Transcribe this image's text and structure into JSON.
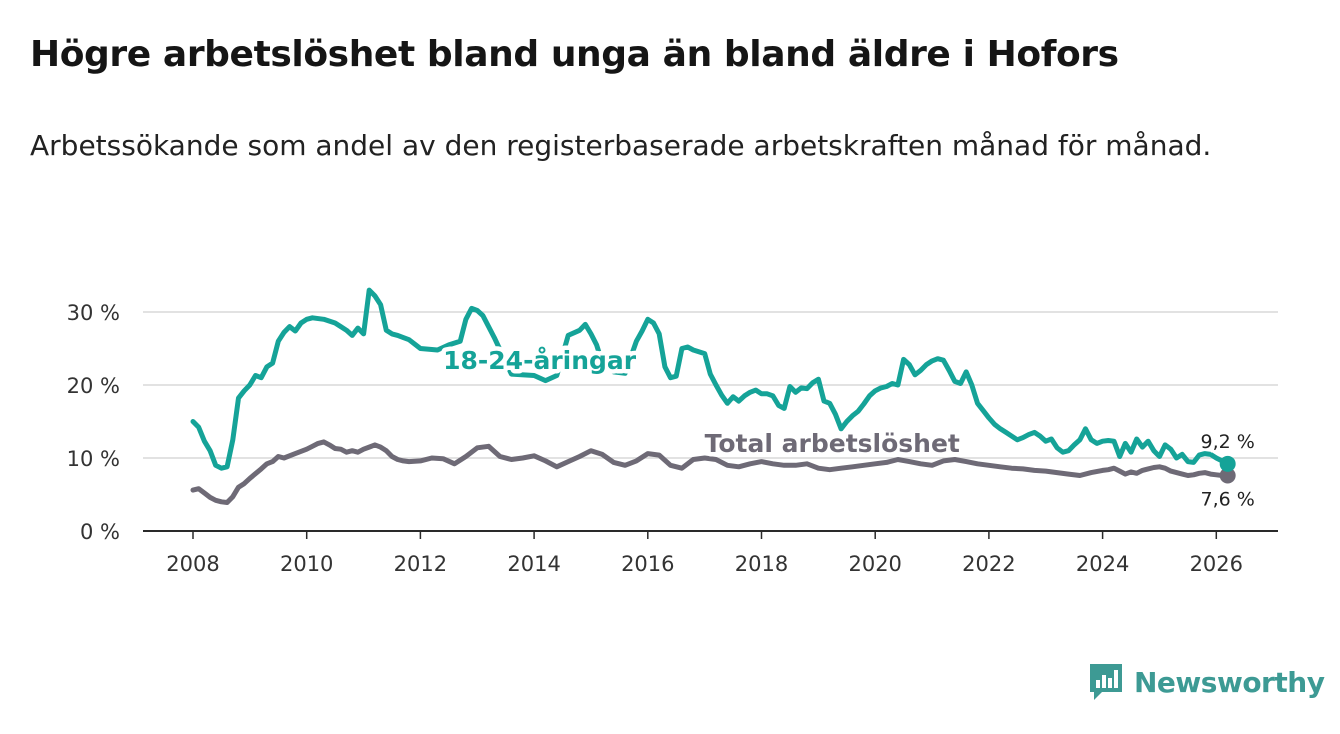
{
  "title": "Högre arbetslöshet bland unga än bland äldre i Hofors",
  "subtitle": "Arbetssökande som andel av den registerbaserade arbetskraften månad för månad.",
  "brand": {
    "name": "Newsworthy",
    "color": "#3d9a94"
  },
  "chart_data": {
    "type": "line",
    "title": "Högre arbetslöshet bland unga än bland äldre i Hofors",
    "xlabel": "",
    "ylabel": "",
    "xlim": [
      2007.5,
      2027.0
    ],
    "ylim": [
      0,
      30
    ],
    "grid": true,
    "x_ticks": [
      {
        "value": 2008,
        "label": "2008"
      },
      {
        "value": 2010,
        "label": "2010"
      },
      {
        "value": 2012,
        "label": "2012"
      },
      {
        "value": 2014,
        "label": "2014"
      },
      {
        "value": 2016,
        "label": "2016"
      },
      {
        "value": 2018,
        "label": "2018"
      },
      {
        "value": 2020,
        "label": "2020"
      },
      {
        "value": 2022,
        "label": "2022"
      },
      {
        "value": 2024,
        "label": "2024"
      },
      {
        "value": 2026,
        "label": "2026"
      }
    ],
    "y_ticks": [
      {
        "value": 0,
        "label": "0 %"
      },
      {
        "value": 10,
        "label": "10 %"
      },
      {
        "value": 20,
        "label": "20 %"
      },
      {
        "value": 30,
        "label": "30 %"
      }
    ],
    "series": [
      {
        "name": "18-24-åringar",
        "color": "#15a398",
        "label_at": [
          2012.4,
          22.2
        ],
        "end_label": "9,2 %",
        "x": [
          2008.0,
          2008.1,
          2008.2,
          2008.3,
          2008.4,
          2008.5,
          2008.6,
          2008.7,
          2008.8,
          2008.9,
          2009.0,
          2009.1,
          2009.2,
          2009.3,
          2009.4,
          2009.5,
          2009.6,
          2009.7,
          2009.8,
          2009.9,
          2010.0,
          2010.1,
          2010.3,
          2010.5,
          2010.6,
          2010.7,
          2010.8,
          2010.9,
          2011.0,
          2011.1,
          2011.2,
          2011.3,
          2011.4,
          2011.5,
          2011.6,
          2011.7,
          2011.8,
          2012.0,
          2012.3,
          2012.5,
          2012.7,
          2012.8,
          2012.9,
          2013.0,
          2013.1,
          2013.2,
          2013.3,
          2013.6,
          2014.0,
          2014.2,
          2014.4,
          2014.6,
          2014.8,
          2014.9,
          2015.0,
          2015.1,
          2015.2,
          2015.4,
          2015.6,
          2015.8,
          2015.9,
          2016.0,
          2016.1,
          2016.2,
          2016.3,
          2016.4,
          2016.5,
          2016.6,
          2016.7,
          2016.8,
          2017.0,
          2017.1,
          2017.2,
          2017.3,
          2017.4,
          2017.5,
          2017.6,
          2017.7,
          2017.8,
          2017.9,
          2018.0,
          2018.1,
          2018.2,
          2018.3,
          2018.4,
          2018.5,
          2018.6,
          2018.7,
          2018.8,
          2018.9,
          2019.0,
          2019.1,
          2019.2,
          2019.3,
          2019.4,
          2019.5,
          2019.6,
          2019.7,
          2019.8,
          2019.9,
          2020.0,
          2020.1,
          2020.2,
          2020.3,
          2020.4,
          2020.5,
          2020.6,
          2020.7,
          2020.8,
          2020.9,
          2021.0,
          2021.1,
          2021.2,
          2021.3,
          2021.4,
          2021.5,
          2021.6,
          2021.7,
          2021.8,
          2021.9,
          2022.0,
          2022.1,
          2022.2,
          2022.3,
          2022.4,
          2022.5,
          2022.6,
          2022.7,
          2022.8,
          2022.9,
          2023.0,
          2023.1,
          2023.2,
          2023.3,
          2023.4,
          2023.5,
          2023.6,
          2023.7,
          2023.8,
          2023.9,
          2024.0,
          2024.1,
          2024.2,
          2024.3,
          2024.4,
          2024.5,
          2024.6,
          2024.7,
          2024.8,
          2024.9,
          2025.0,
          2025.1,
          2025.2,
          2025.3,
          2025.4,
          2025.5,
          2025.6,
          2025.7,
          2025.8,
          2025.9,
          2026.0,
          2026.1,
          2026.2
        ],
        "y": [
          15.0,
          14.2,
          12.3,
          11.0,
          9.0,
          8.6,
          8.8,
          12.5,
          18.2,
          19.2,
          20.0,
          21.3,
          21.0,
          22.5,
          23.0,
          26.0,
          27.2,
          28.0,
          27.4,
          28.5,
          29.0,
          29.2,
          29.0,
          28.5,
          28.0,
          27.5,
          26.8,
          27.8,
          27.0,
          33.0,
          32.2,
          31.0,
          27.5,
          27.0,
          26.8,
          26.5,
          26.2,
          25.0,
          24.8,
          25.5,
          26.0,
          29.0,
          30.5,
          30.2,
          29.5,
          28.0,
          26.5,
          21.5,
          21.3,
          20.6,
          21.3,
          26.8,
          27.5,
          28.3,
          27.0,
          25.5,
          23.0,
          21.8,
          21.6,
          26.0,
          27.4,
          29.0,
          28.5,
          27.0,
          22.5,
          21.0,
          21.2,
          25.0,
          25.2,
          24.8,
          24.3,
          21.5,
          20.0,
          18.6,
          17.5,
          18.4,
          17.8,
          18.5,
          19.0,
          19.3,
          18.8,
          18.8,
          18.5,
          17.2,
          16.8,
          19.8,
          19.0,
          19.6,
          19.5,
          20.3,
          20.8,
          17.8,
          17.5,
          16.0,
          14.0,
          15.0,
          15.8,
          16.4,
          17.4,
          18.5,
          19.2,
          19.6,
          19.8,
          20.2,
          20.0,
          23.5,
          22.8,
          21.4,
          22.0,
          22.8,
          23.3,
          23.6,
          23.4,
          22.0,
          20.5,
          20.2,
          21.8,
          20.0,
          17.5,
          16.5,
          15.5,
          14.6,
          14.0,
          13.5,
          13.0,
          12.5,
          12.8,
          13.2,
          13.5,
          13.0,
          12.3,
          12.6,
          11.4,
          10.8,
          11.0,
          11.8,
          12.5,
          14.0,
          12.5,
          12.0,
          12.3,
          12.4,
          12.3,
          10.2,
          12.0,
          10.8,
          12.6,
          11.5,
          12.3,
          11.0,
          10.2,
          11.8,
          11.2,
          10.0,
          10.5,
          9.5,
          9.4,
          10.4,
          10.6,
          10.5,
          10.0,
          9.6,
          9.2
        ],
        "markers": [
          {
            "name": "18-24-åringar",
            "x": [
              2008.0,
              2008.1,
              2008.2,
              2008.3,
              2008.4,
              2008.5
            ]
          }
        ]
      },
      {
        "name": "Total arbetslöshet",
        "color": "#6e6a76",
        "label_at": [
          2017.0,
          10.8
        ],
        "end_label": "7,6 %",
        "x": [
          2008.0,
          2008.1,
          2008.2,
          2008.3,
          2008.4,
          2008.5,
          2008.6,
          2008.7,
          2008.8,
          2008.9,
          2009.0,
          2009.2,
          2009.3,
          2009.4,
          2009.5,
          2009.6,
          2009.8,
          2010.0,
          2010.1,
          2010.2,
          2010.3,
          2010.4,
          2010.5,
          2010.6,
          2010.7,
          2010.8,
          2010.9,
          2011.0,
          2011.1,
          2011.2,
          2011.3,
          2011.4,
          2011.5,
          2011.6,
          2011.7,
          2011.8,
          2012.0,
          2012.2,
          2012.4,
          2012.6,
          2012.8,
          2013.0,
          2013.2,
          2013.4,
          2013.6,
          2013.8,
          2014.0,
          2014.2,
          2014.4,
          2014.6,
          2014.8,
          2015.0,
          2015.2,
          2015.4,
          2015.6,
          2015.8,
          2016.0,
          2016.2,
          2016.4,
          2016.6,
          2016.8,
          2017.0,
          2017.2,
          2017.4,
          2017.6,
          2017.8,
          2018.0,
          2018.2,
          2018.4,
          2018.6,
          2018.8,
          2019.0,
          2019.2,
          2019.4,
          2019.6,
          2019.8,
          2020.0,
          2020.2,
          2020.4,
          2020.6,
          2020.8,
          2021.0,
          2021.2,
          2021.4,
          2021.6,
          2021.8,
          2022.0,
          2022.2,
          2022.4,
          2022.6,
          2022.8,
          2023.0,
          2023.2,
          2023.4,
          2023.6,
          2023.8,
          2024.0,
          2024.1,
          2024.2,
          2024.3,
          2024.4,
          2024.5,
          2024.6,
          2024.7,
          2024.8,
          2024.9,
          2025.0,
          2025.1,
          2025.2,
          2025.3,
          2025.4,
          2025.5,
          2025.6,
          2025.7,
          2025.8,
          2025.9,
          2026.0,
          2026.1,
          2026.2
        ],
        "y": [
          5.6,
          5.8,
          5.2,
          4.6,
          4.2,
          4.0,
          3.9,
          4.7,
          6.0,
          6.5,
          7.2,
          8.5,
          9.2,
          9.5,
          10.2,
          10.0,
          10.6,
          11.2,
          11.6,
          12.0,
          12.2,
          11.8,
          11.3,
          11.2,
          10.8,
          11.0,
          10.8,
          11.2,
          11.5,
          11.8,
          11.5,
          11.0,
          10.2,
          9.8,
          9.6,
          9.5,
          9.6,
          10.0,
          9.9,
          9.2,
          10.2,
          11.4,
          11.6,
          10.2,
          9.8,
          10.0,
          10.3,
          9.6,
          8.8,
          9.5,
          10.2,
          11.0,
          10.5,
          9.4,
          9.0,
          9.6,
          10.6,
          10.4,
          9.0,
          8.6,
          9.8,
          10.0,
          9.8,
          9.0,
          8.8,
          9.2,
          9.5,
          9.2,
          9.0,
          9.0,
          9.2,
          8.6,
          8.4,
          8.6,
          8.8,
          9.0,
          9.2,
          9.4,
          9.8,
          9.5,
          9.2,
          9.0,
          9.6,
          9.8,
          9.5,
          9.2,
          9.0,
          8.8,
          8.6,
          8.5,
          8.3,
          8.2,
          8.0,
          7.8,
          7.6,
          8.0,
          8.3,
          8.4,
          8.6,
          8.2,
          7.8,
          8.1,
          7.9,
          8.3,
          8.5,
          8.7,
          8.8,
          8.6,
          8.2,
          8.0,
          7.8,
          7.6,
          7.7,
          7.9,
          8.0,
          7.8,
          7.7,
          7.6,
          7.6
        ]
      }
    ]
  }
}
